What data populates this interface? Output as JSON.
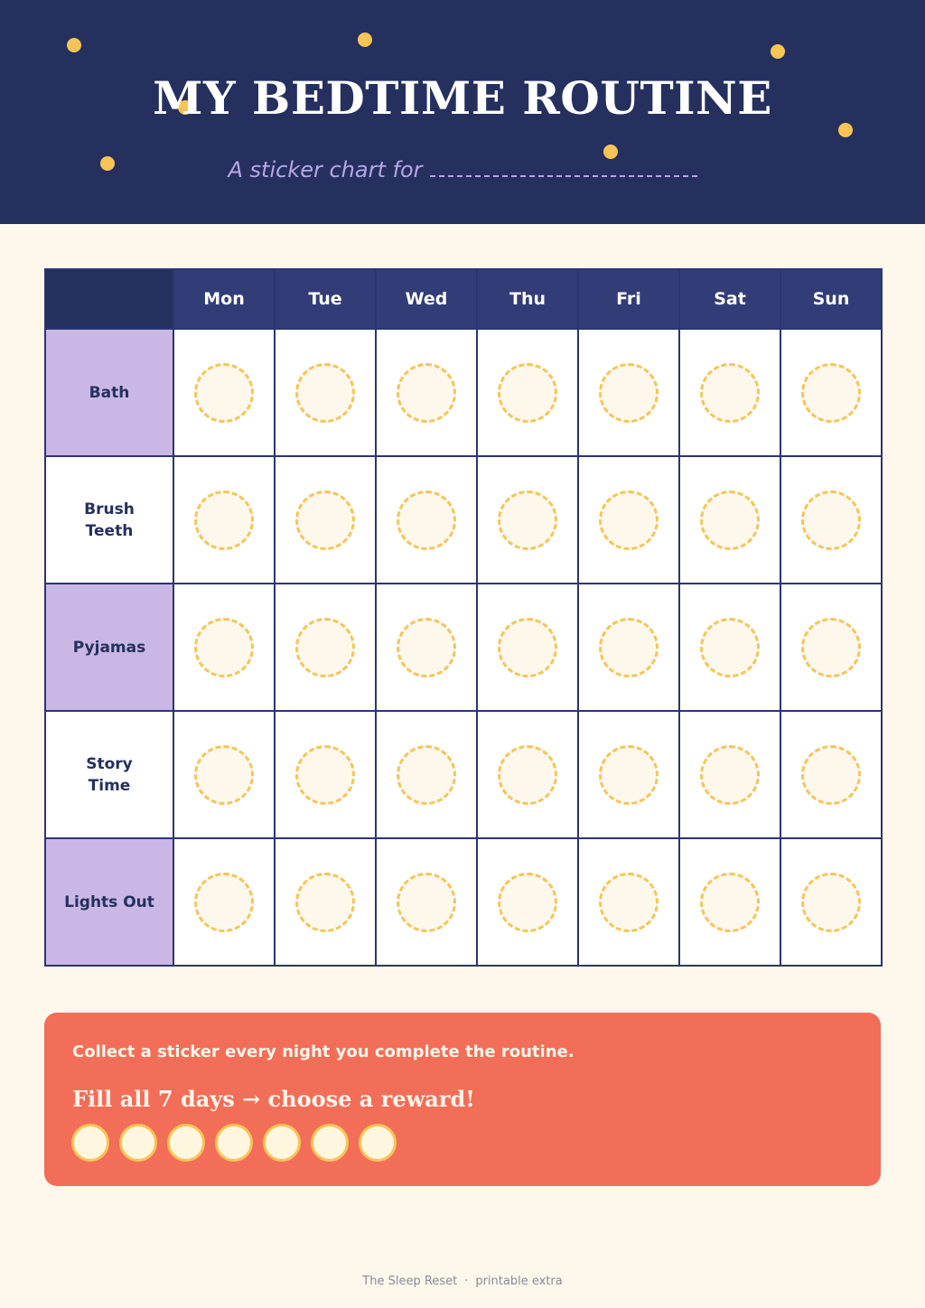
{
  "header": {
    "title": "MY BEDTIME ROUTINE",
    "subtitle": "A sticker chart for"
  },
  "colors": {
    "header_bg": "#25305e",
    "star": "#f7c456",
    "shaded_label": "#c9b7e5",
    "reward_bg": "#f26e58",
    "page_bg": "#fdf7ec"
  },
  "chart": {
    "days": [
      "Mon",
      "Tue",
      "Wed",
      "Thu",
      "Fri",
      "Sat",
      "Sun"
    ],
    "tasks": [
      "Bath",
      "Brush Teeth",
      "Pyjamas",
      "Story Time",
      "Lights Out"
    ]
  },
  "reward": {
    "line1": "Collect a sticker every night you complete the routine.",
    "line2": "Fill all 7 days → choose a reward!",
    "sticker_count": 7
  },
  "footer": {
    "brand": "The Sleep Reset",
    "separator": "·",
    "note": "printable extra"
  }
}
